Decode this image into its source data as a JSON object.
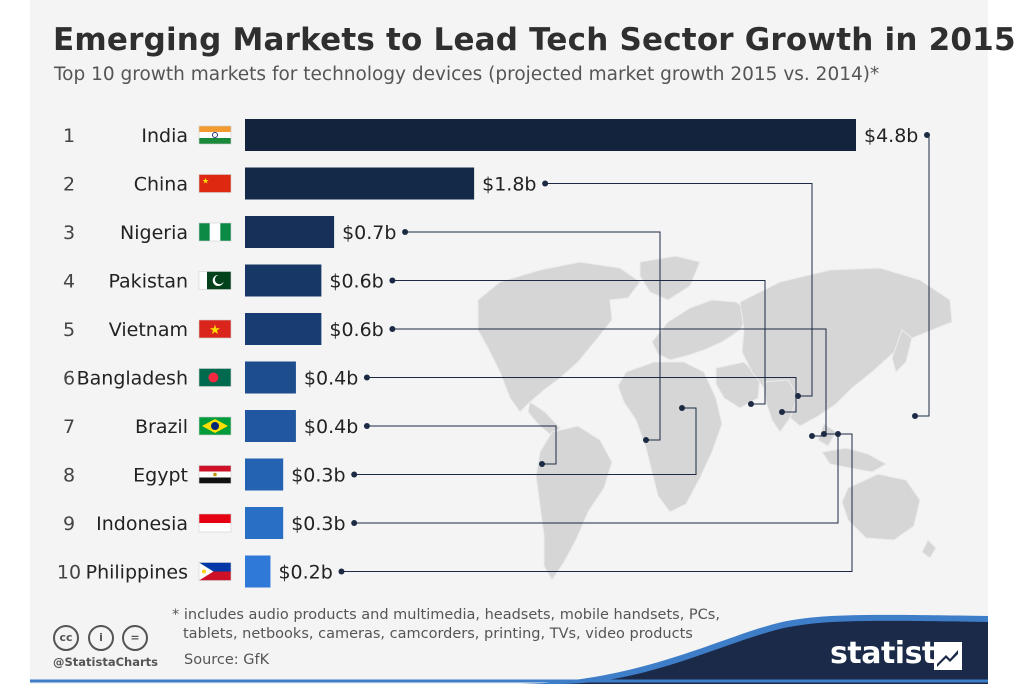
{
  "chart_data": {
    "type": "bar",
    "orientation": "horizontal",
    "title": "Emerging Markets to Lead Tech Sector Growth in 2015",
    "subtitle": "Top 10 growth markets for technology devices (projected market growth 2015 vs. 2014)*",
    "ranks": [
      "1",
      "2",
      "3",
      "4",
      "5",
      "6",
      "7",
      "8",
      "9",
      "10"
    ],
    "categories": [
      "India",
      "China",
      "Nigeria",
      "Pakistan",
      "Vietnam",
      "Bangladesh",
      "Brazil",
      "Egypt",
      "Indonesia",
      "Philippines"
    ],
    "values": [
      4.8,
      1.8,
      0.7,
      0.6,
      0.6,
      0.4,
      0.4,
      0.3,
      0.3,
      0.2
    ],
    "value_labels": [
      "$4.8b",
      "$1.8b",
      "$0.7b",
      "$0.6b",
      "$0.6b",
      "$0.4b",
      "$0.4b",
      "$0.3b",
      "$0.3b",
      "$0.2b"
    ],
    "unit": "billion USD",
    "bar_colors": [
      "#13223d",
      "#142848",
      "#16305a",
      "#173767",
      "#183d72",
      "#1d4d8d",
      "#2157a0",
      "#2462b2",
      "#2a6fc6",
      "#2f7ad9"
    ],
    "xlim": [
      0,
      4.8
    ],
    "grid": false,
    "legend": "none",
    "annotations": "flag icons beside country names; leader lines from value labels to country locations on a world map"
  },
  "footer": {
    "note_line1": "* includes audio products and multimedia, headsets, mobile handsets, PCs,",
    "note_line2": "tablets, netbooks, cameras, camcorders, printing, TVs, video products",
    "source": "Source: GfK",
    "handle": "@StatistaCharts",
    "brand": "statista"
  },
  "flags": [
    "india-flag",
    "china-flag",
    "nigeria-flag",
    "pakistan-flag",
    "vietnam-flag",
    "bangladesh-flag",
    "brazil-flag",
    "egypt-flag",
    "indonesia-flag",
    "philippines-flag"
  ]
}
